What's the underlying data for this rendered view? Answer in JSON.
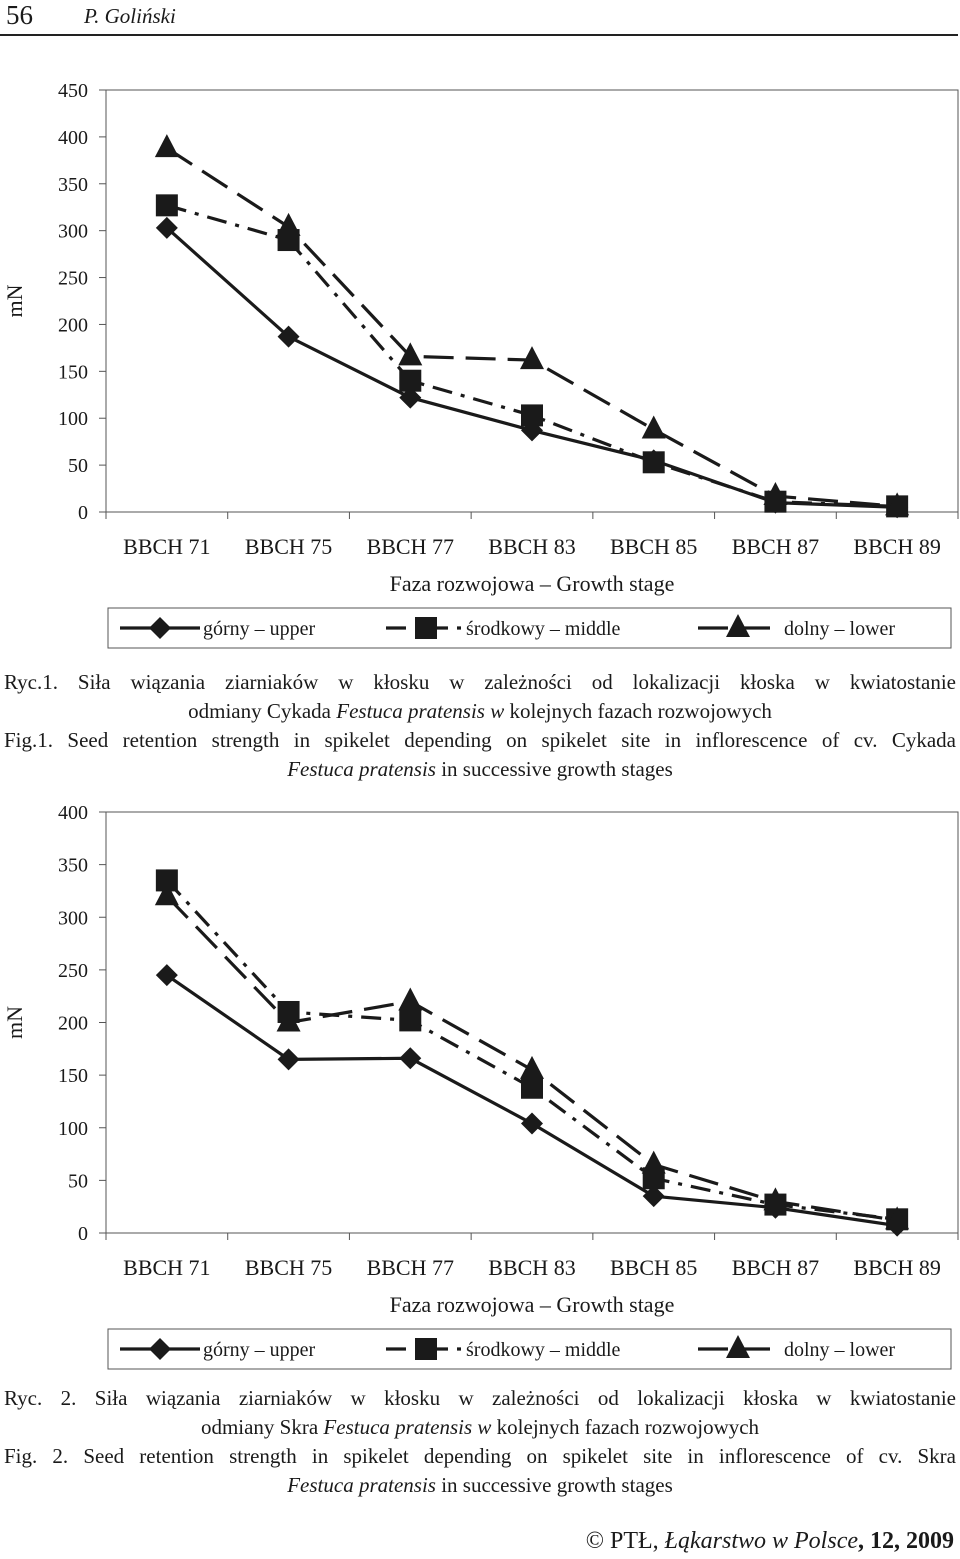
{
  "header": {
    "page_number": "56",
    "author": "P. Goliński"
  },
  "figures": [
    {
      "caption_pl": {
        "prefix": "Ryc.1.",
        "text_a": " Siła wiązania ziarniaków w kłosku w zależności od lokalizacji kłoska w kwiatostanie",
        "text_b": "odmiany Cykada ",
        "italic": "Festuca pratensis w",
        "text_c": " kolejnych fazach rozwojowych"
      },
      "caption_en": {
        "prefix": "Fig.1.",
        "text_a": " Seed retention strength in spikelet depending on spikelet site in inflorescence of cv. Cykada",
        "italic": "Festuca pratensis",
        "text_c": " in successive growth stages"
      }
    },
    {
      "caption_pl": {
        "prefix": "Ryc. 2.",
        "text_a": " Siła wiązania ziarniaków w kłosku w zależności od lokalizacji kłoska w kwiatostanie",
        "text_b": "odmiany Skra ",
        "italic": "Festuca pratensis w",
        "text_c": " kolejnych fazach rozwojowych"
      },
      "caption_en": {
        "prefix": "Fig. 2.",
        "text_a": " Seed retention strength in spikelet depending on spikelet site in inflorescence of cv. Skra",
        "italic": "Festuca pratensis",
        "text_c": " in successive growth stages"
      }
    }
  ],
  "chart_data": [
    {
      "type": "line",
      "categories": [
        "BBCH 71",
        "BBCH 75",
        "BBCH 77",
        "BBCH 83",
        "BBCH 85",
        "BBCH 87",
        "BBCH 89"
      ],
      "xlabel": "Faza rozwojowa – Growth stage",
      "ylabel": "mN",
      "ylim": [
        0,
        450
      ],
      "yticks": [
        0,
        50,
        100,
        150,
        200,
        250,
        300,
        350,
        400,
        450
      ],
      "grid": false,
      "legend_position": "bottom",
      "series": [
        {
          "name": "górny – upper",
          "marker": "diamond",
          "dash": "solid",
          "values": [
            303,
            187,
            122,
            87,
            55,
            10,
            5
          ]
        },
        {
          "name": "środkowy – middle",
          "marker": "square",
          "dash": "dash-dot",
          "values": [
            327,
            290,
            140,
            103,
            53,
            11,
            6
          ]
        },
        {
          "name": "dolny – lower",
          "marker": "triangle",
          "dash": "long-dash",
          "values": [
            388,
            304,
            166,
            162,
            88,
            17,
            6
          ]
        }
      ]
    },
    {
      "type": "line",
      "categories": [
        "BBCH 71",
        "BBCH 75",
        "BBCH 77",
        "BBCH 83",
        "BBCH 85",
        "BBCH 87",
        "BBCH 89"
      ],
      "xlabel": "Faza rozwojowa – Growth stage",
      "ylabel": "mN",
      "ylim": [
        0,
        400
      ],
      "yticks": [
        0,
        50,
        100,
        150,
        200,
        250,
        300,
        350,
        400
      ],
      "grid": false,
      "legend_position": "bottom",
      "series": [
        {
          "name": "górny – upper",
          "marker": "diamond",
          "dash": "solid",
          "values": [
            245,
            165,
            166,
            104,
            35,
            24,
            7
          ]
        },
        {
          "name": "środkowy – middle",
          "marker": "square",
          "dash": "dash-dot",
          "values": [
            335,
            210,
            202,
            138,
            52,
            27,
            13
          ]
        },
        {
          "name": "dolny – lower",
          "marker": "triangle",
          "dash": "long-dash",
          "values": [
            320,
            200,
            220,
            155,
            65,
            30,
            12
          ]
        }
      ]
    }
  ],
  "footer": {
    "copyright": "© PTŁ, ",
    "journal": "Łąkarstwo w Polsce",
    "volume": ", 12, 2009"
  }
}
